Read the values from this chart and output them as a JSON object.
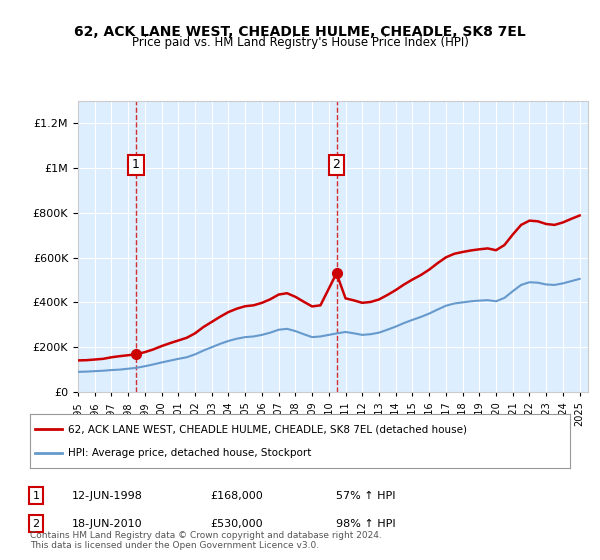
{
  "title": "62, ACK LANE WEST, CHEADLE HULME, CHEADLE, SK8 7EL",
  "subtitle": "Price paid vs. HM Land Registry's House Price Index (HPI)",
  "legend_line1": "62, ACK LANE WEST, CHEADLE HULME, CHEADLE, SK8 7EL (detached house)",
  "legend_line2": "HPI: Average price, detached house, Stockport",
  "footnote": "Contains HM Land Registry data © Crown copyright and database right 2024.\nThis data is licensed under the Open Government Licence v3.0.",
  "sale1_date": "12-JUN-1998",
  "sale1_price": 168000,
  "sale1_pct": "57% ↑ HPI",
  "sale2_date": "18-JUN-2010",
  "sale2_price": 530000,
  "sale2_pct": "98% ↑ HPI",
  "background_color": "#ddeeff",
  "plot_bg": "#ddeeff",
  "red_color": "#cc0000",
  "blue_color": "#6699cc",
  "ylim": [
    0,
    1300000
  ],
  "yticks": [
    0,
    200000,
    400000,
    600000,
    800000,
    1000000,
    1200000
  ],
  "xlim_start": 1995.0,
  "xlim_end": 2025.5,
  "hpi_x": [
    1995,
    1995.5,
    1996,
    1996.5,
    1997,
    1997.5,
    1998,
    1998.5,
    1999,
    1999.5,
    2000,
    2000.5,
    2001,
    2001.5,
    2002,
    2002.5,
    2003,
    2003.5,
    2004,
    2004.5,
    2005,
    2005.5,
    2006,
    2006.5,
    2007,
    2007.5,
    2008,
    2008.5,
    2009,
    2009.5,
    2010,
    2010.5,
    2011,
    2011.5,
    2012,
    2012.5,
    2013,
    2013.5,
    2014,
    2014.5,
    2015,
    2015.5,
    2016,
    2016.5,
    2017,
    2017.5,
    2018,
    2018.5,
    2019,
    2019.5,
    2020,
    2020.5,
    2021,
    2021.5,
    2022,
    2022.5,
    2023,
    2023.5,
    2024,
    2024.5,
    2025
  ],
  "hpi_y": [
    90000,
    91000,
    93000,
    95000,
    98000,
    100000,
    104000,
    108000,
    115000,
    123000,
    132000,
    140000,
    148000,
    155000,
    168000,
    185000,
    200000,
    215000,
    228000,
    238000,
    245000,
    248000,
    255000,
    265000,
    278000,
    282000,
    272000,
    258000,
    245000,
    248000,
    255000,
    262000,
    268000,
    262000,
    255000,
    258000,
    265000,
    278000,
    292000,
    308000,
    322000,
    335000,
    350000,
    368000,
    385000,
    395000,
    400000,
    405000,
    408000,
    410000,
    405000,
    420000,
    450000,
    478000,
    490000,
    488000,
    480000,
    478000,
    485000,
    495000,
    505000
  ],
  "red_x": [
    1995,
    1995.5,
    1996,
    1996.5,
    1997,
    1997.5,
    1998.46,
    1999,
    1999.5,
    2000,
    2000.5,
    2001,
    2001.5,
    2002,
    2002.5,
    2003,
    2003.5,
    2004,
    2004.5,
    2005,
    2005.5,
    2006,
    2006.5,
    2007,
    2007.5,
    2008,
    2008.5,
    2009,
    2009.5,
    2010.46,
    2011,
    2011.5,
    2012,
    2012.5,
    2013,
    2013.5,
    2014,
    2014.5,
    2015,
    2015.5,
    2016,
    2016.5,
    2017,
    2017.5,
    2018,
    2018.5,
    2019,
    2019.5,
    2020,
    2020.5,
    2021,
    2021.5,
    2022,
    2022.5,
    2023,
    2023.5,
    2024,
    2024.5,
    2025
  ],
  "red_y": [
    141000,
    142000,
    145000,
    148000,
    155000,
    160000,
    168000,
    178000,
    190000,
    205000,
    218000,
    230000,
    242000,
    262000,
    290000,
    313000,
    336000,
    357000,
    372000,
    383000,
    387000,
    398000,
    414000,
    435000,
    441000,
    425000,
    403000,
    382000,
    387000,
    530000,
    418000,
    409000,
    398000,
    402000,
    413000,
    433000,
    455000,
    480000,
    502000,
    522000,
    546000,
    575000,
    601000,
    617000,
    625000,
    632000,
    637000,
    641000,
    633000,
    656000,
    703000,
    746000,
    765000,
    762000,
    750000,
    746000,
    757000,
    773000,
    788000
  ],
  "sale1_x": 1998.46,
  "sale1_y": 168000,
  "sale2_x": 2010.46,
  "sale2_y": 530000
}
